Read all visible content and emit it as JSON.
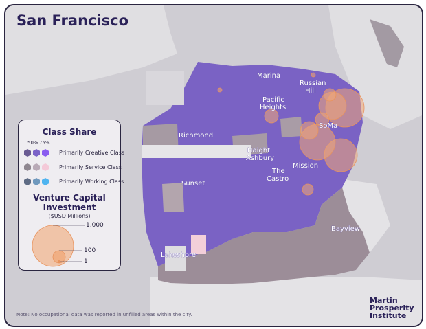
{
  "title": "San Francisco",
  "neighborhoods": [
    "Marina",
    "Russian Hill",
    "Pacific Heights",
    "SoMa",
    "Richmond",
    "Haight Ashbury",
    "Mission",
    "The Castro",
    "Sunset",
    "Bayview",
    "Lakeshore"
  ],
  "legend": {
    "class_share_title": "Class Share",
    "pct_labels": [
      "50%",
      "75%"
    ],
    "classes": [
      {
        "label": "Primarily Creative Class",
        "colors": [
          "#6a5b93",
          "#7b62c8",
          "#8a5cf0"
        ]
      },
      {
        "label": "Primarily Service Class",
        "colors": [
          "#8f8790",
          "#b9aab7",
          "#f4c9d8"
        ]
      },
      {
        "label": "Primarily Working Class",
        "colors": [
          "#5e6b84",
          "#6f98bd",
          "#4fb4f0"
        ]
      }
    ],
    "vc_title_1": "Venture Capital",
    "vc_title_2": "Investment",
    "vc_subtitle": "($USD Millions)",
    "vc_values": [
      "1,000",
      "100",
      "1"
    ]
  },
  "note": "Note: No occupational data was reported in unfilled areas within the city.",
  "brand": [
    "Martin",
    "Prosperity",
    "Institute"
  ],
  "colors": {
    "creative": "#7a62c4",
    "service": "#9e8f9a",
    "vc_bubble": "#f0a878",
    "water": "#cfcdd3",
    "land": "#e3e2e4"
  }
}
